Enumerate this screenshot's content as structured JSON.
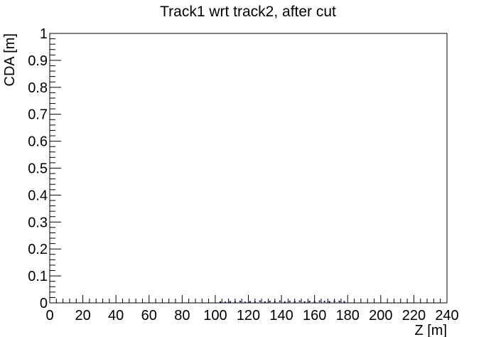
{
  "chart_data": {
    "type": "scatter",
    "title": "Track1 wrt track2, after cut",
    "xlabel": "Z [m]",
    "ylabel": "CDA [m]",
    "xlim": [
      0,
      240
    ],
    "ylim": [
      0,
      1
    ],
    "x_ticks": [
      "0",
      "20",
      "40",
      "60",
      "80",
      "100",
      "120",
      "140",
      "160",
      "180",
      "200",
      "220",
      "240"
    ],
    "y_ticks": [
      "0",
      "0.1",
      "0.2",
      "0.3",
      "0.4",
      "0.5",
      "0.6",
      "0.7",
      "0.8",
      "0.9",
      "1"
    ],
    "grid": false,
    "marker_color": "#00007f",
    "points": [
      {
        "x": 103,
        "y": 0.003
      },
      {
        "x": 106,
        "y": 0.002
      },
      {
        "x": 109,
        "y": 0.004
      },
      {
        "x": 112,
        "y": 0.003
      },
      {
        "x": 115,
        "y": 0.005
      },
      {
        "x": 118,
        "y": 0.002
      },
      {
        "x": 121,
        "y": 0.004
      },
      {
        "x": 124,
        "y": 0.003
      },
      {
        "x": 127,
        "y": 0.006
      },
      {
        "x": 130,
        "y": 0.003
      },
      {
        "x": 133,
        "y": 0.005
      },
      {
        "x": 136,
        "y": 0.004
      },
      {
        "x": 139,
        "y": 0.006
      },
      {
        "x": 142,
        "y": 0.003
      },
      {
        "x": 145,
        "y": 0.005
      },
      {
        "x": 148,
        "y": 0.004
      },
      {
        "x": 151,
        "y": 0.006
      },
      {
        "x": 154,
        "y": 0.003
      },
      {
        "x": 157,
        "y": 0.005
      },
      {
        "x": 160,
        "y": 0.004
      },
      {
        "x": 163,
        "y": 0.006
      },
      {
        "x": 166,
        "y": 0.005
      },
      {
        "x": 169,
        "y": 0.004
      },
      {
        "x": 172,
        "y": 0.006
      },
      {
        "x": 175,
        "y": 0.005
      },
      {
        "x": 178,
        "y": 0.004
      }
    ]
  }
}
